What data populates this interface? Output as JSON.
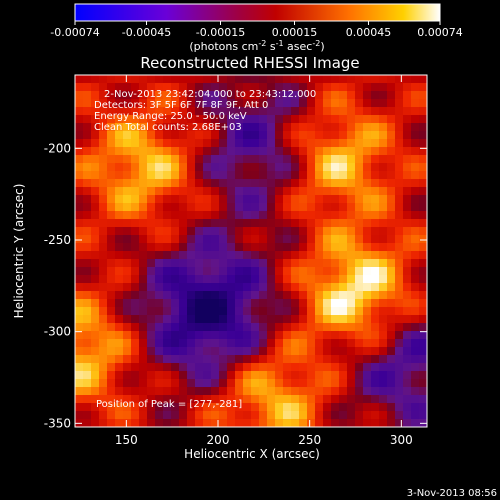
{
  "colorbar": {
    "ticks": [
      "-0.00074",
      "-0.00045",
      "-0.00015",
      "0.00015",
      "0.00045",
      "0.00074"
    ],
    "unit_main": "(photons cm",
    "unit_exp1": "-2",
    "unit_mid": " s",
    "unit_exp2": "-1",
    "unit_end": " asec",
    "unit_exp3": "-2",
    "unit_close": ")"
  },
  "plot": {
    "title": "Reconstructed RHESSI Image",
    "info_lines": [
      "2-Nov-2013 23:42:04.000 to 23:43:12.000",
      "Detectors: 3F 5F 6F 7F 8F 9F, Att 0",
      "Energy Range: 25.0 - 50.0 keV",
      "Clean     Total counts: 2.68E+03"
    ],
    "peak_label": "Position of Peak = [277,-281]",
    "xlabel": "Heliocentric X (arcsec)",
    "ylabel": "Heliocentric Y (arcsec)",
    "xticks": [
      "150",
      "200",
      "250",
      "300"
    ],
    "yticks": [
      "-200",
      "-250",
      "-300",
      "-350"
    ]
  },
  "footer": {
    "timestamp": "3-Nov-2013 08:56"
  },
  "chart_data": {
    "type": "heatmap",
    "title": "Reconstructed RHESSI Image",
    "xlabel": "Heliocentric X (arcsec)",
    "ylabel": "Heliocentric Y (arcsec)",
    "xlim": [
      122,
      314
    ],
    "ylim": [
      -352,
      -160
    ],
    "xticks": [
      150,
      200,
      250,
      300
    ],
    "yticks": [
      -200,
      -250,
      -300,
      -350
    ],
    "zlim": [
      -0.00074,
      0.00074
    ],
    "colorbar_ticks": [
      -0.00074,
      -0.00045,
      -0.00015,
      0.00015,
      0.00045,
      0.00074
    ],
    "colormap": "blue-purple-red-yellow-white",
    "peak_position": [
      277,
      -281
    ],
    "bright_regions": [
      {
        "x": 277,
        "y": -281,
        "level": 0.00074
      },
      {
        "x": 262,
        "y": -206,
        "level": 0.0006
      },
      {
        "x": 160,
        "y": -210,
        "level": 0.0005
      },
      {
        "x": 125,
        "y": -310,
        "level": 0.0005
      },
      {
        "x": 230,
        "y": -335,
        "level": 0.0005
      }
    ],
    "dark_regions": [
      {
        "x": 195,
        "y": -290,
        "level": -0.00074
      },
      {
        "x": 225,
        "y": -200,
        "level": -0.0005
      },
      {
        "x": 300,
        "y": -315,
        "level": -0.0005
      }
    ]
  }
}
